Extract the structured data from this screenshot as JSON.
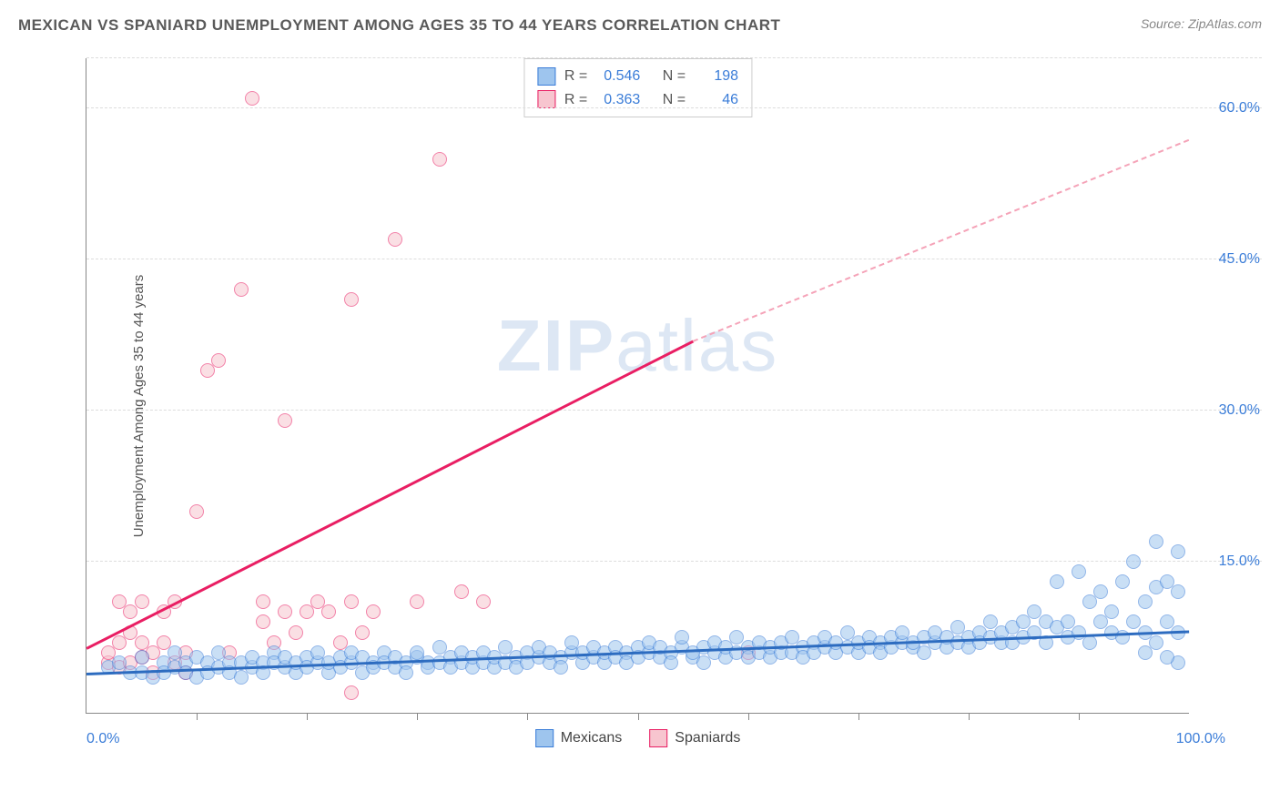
{
  "title": "MEXICAN VS SPANIARD UNEMPLOYMENT AMONG AGES 35 TO 44 YEARS CORRELATION CHART",
  "source_prefix": "Source: ",
  "source_name": "ZipAtlas.com",
  "ylabel": "Unemployment Among Ages 35 to 44 years",
  "watermark_bold": "ZIP",
  "watermark_rest": "atlas",
  "chart": {
    "type": "scatter",
    "background_color": "#ffffff",
    "grid_color": "#dddddd",
    "axis_color": "#888888",
    "label_color": "#3b7dd8",
    "xlim": [
      0,
      100
    ],
    "ylim": [
      0,
      65
    ],
    "x_ticks_label_left": "0.0%",
    "x_ticks_label_right": "100.0%",
    "x_minor_ticks": [
      10,
      20,
      30,
      40,
      50,
      60,
      70,
      80,
      90
    ],
    "y_gridlines": [
      {
        "value": 15.0,
        "label": "15.0%"
      },
      {
        "value": 30.0,
        "label": "30.0%"
      },
      {
        "value": 45.0,
        "label": "45.0%"
      },
      {
        "value": 60.0,
        "label": "60.0%"
      }
    ],
    "point_radius": 8,
    "point_opacity": 0.55,
    "point_border_width": 1.2,
    "series": [
      {
        "name": "Mexicans",
        "fill_color": "#9ec5ee",
        "border_color": "#3b7dd8",
        "R": "0.546",
        "N": "198",
        "trend": {
          "x1": 0,
          "y1": 4.0,
          "x2": 100,
          "y2": 8.2,
          "color": "#2d6cc0",
          "width": 2.5
        },
        "points": [
          [
            2,
            4.5
          ],
          [
            3,
            5
          ],
          [
            4,
            4
          ],
          [
            5,
            5.5
          ],
          [
            5,
            4
          ],
          [
            6,
            3.5
          ],
          [
            7,
            5
          ],
          [
            7,
            4
          ],
          [
            8,
            4.5
          ],
          [
            8,
            6
          ],
          [
            9,
            5
          ],
          [
            9,
            4
          ],
          [
            10,
            3.5
          ],
          [
            10,
            5.5
          ],
          [
            11,
            5
          ],
          [
            11,
            4
          ],
          [
            12,
            4.5
          ],
          [
            12,
            6
          ],
          [
            13,
            5
          ],
          [
            13,
            4
          ],
          [
            14,
            5
          ],
          [
            14,
            3.5
          ],
          [
            15,
            4.5
          ],
          [
            15,
            5.5
          ],
          [
            16,
            5
          ],
          [
            16,
            4
          ],
          [
            17,
            6
          ],
          [
            17,
            5
          ],
          [
            18,
            4.5
          ],
          [
            18,
            5.5
          ],
          [
            19,
            4
          ],
          [
            19,
            5
          ],
          [
            20,
            5.5
          ],
          [
            20,
            4.5
          ],
          [
            21,
            5
          ],
          [
            21,
            6
          ],
          [
            22,
            4
          ],
          [
            22,
            5
          ],
          [
            23,
            5.5
          ],
          [
            23,
            4.5
          ],
          [
            24,
            5
          ],
          [
            24,
            6
          ],
          [
            25,
            4
          ],
          [
            25,
            5.5
          ],
          [
            26,
            5
          ],
          [
            26,
            4.5
          ],
          [
            27,
            6
          ],
          [
            27,
            5
          ],
          [
            28,
            4.5
          ],
          [
            28,
            5.5
          ],
          [
            29,
            5
          ],
          [
            29,
            4
          ],
          [
            30,
            5.5
          ],
          [
            30,
            6
          ],
          [
            31,
            5
          ],
          [
            31,
            4.5
          ],
          [
            32,
            6.5
          ],
          [
            32,
            5
          ],
          [
            33,
            5.5
          ],
          [
            33,
            4.5
          ],
          [
            34,
            5
          ],
          [
            34,
            6
          ],
          [
            35,
            4.5
          ],
          [
            35,
            5.5
          ],
          [
            36,
            5
          ],
          [
            36,
            6
          ],
          [
            37,
            4.5
          ],
          [
            37,
            5.5
          ],
          [
            38,
            5
          ],
          [
            38,
            6.5
          ],
          [
            39,
            5.5
          ],
          [
            39,
            4.5
          ],
          [
            40,
            6
          ],
          [
            40,
            5
          ],
          [
            41,
            5.5
          ],
          [
            41,
            6.5
          ],
          [
            42,
            5
          ],
          [
            42,
            6
          ],
          [
            43,
            5.5
          ],
          [
            43,
            4.5
          ],
          [
            44,
            6
          ],
          [
            44,
            7
          ],
          [
            45,
            5
          ],
          [
            45,
            6
          ],
          [
            46,
            5.5
          ],
          [
            46,
            6.5
          ],
          [
            47,
            5
          ],
          [
            47,
            6
          ],
          [
            48,
            6.5
          ],
          [
            48,
            5.5
          ],
          [
            49,
            6
          ],
          [
            49,
            5
          ],
          [
            50,
            6.5
          ],
          [
            50,
            5.5
          ],
          [
            51,
            6
          ],
          [
            51,
            7
          ],
          [
            52,
            5.5
          ],
          [
            52,
            6.5
          ],
          [
            53,
            6
          ],
          [
            53,
            5
          ],
          [
            54,
            6.5
          ],
          [
            54,
            7.5
          ],
          [
            55,
            5.5
          ],
          [
            55,
            6
          ],
          [
            56,
            6.5
          ],
          [
            56,
            5
          ],
          [
            57,
            6
          ],
          [
            57,
            7
          ],
          [
            58,
            5.5
          ],
          [
            58,
            6.5
          ],
          [
            59,
            6
          ],
          [
            59,
            7.5
          ],
          [
            60,
            6.5
          ],
          [
            60,
            5.5
          ],
          [
            61,
            6
          ],
          [
            61,
            7
          ],
          [
            62,
            5.5
          ],
          [
            62,
            6.5
          ],
          [
            63,
            6
          ],
          [
            63,
            7
          ],
          [
            64,
            7.5
          ],
          [
            64,
            6
          ],
          [
            65,
            6.5
          ],
          [
            65,
            5.5
          ],
          [
            66,
            7
          ],
          [
            66,
            6
          ],
          [
            67,
            6.5
          ],
          [
            67,
            7.5
          ],
          [
            68,
            6
          ],
          [
            68,
            7
          ],
          [
            69,
            6.5
          ],
          [
            69,
            8
          ],
          [
            70,
            6
          ],
          [
            70,
            7
          ],
          [
            71,
            7.5
          ],
          [
            71,
            6.5
          ],
          [
            72,
            7
          ],
          [
            72,
            6
          ],
          [
            73,
            6.5
          ],
          [
            73,
            7.5
          ],
          [
            74,
            7
          ],
          [
            74,
            8
          ],
          [
            75,
            6.5
          ],
          [
            75,
            7
          ],
          [
            76,
            7.5
          ],
          [
            76,
            6
          ],
          [
            77,
            7
          ],
          [
            77,
            8
          ],
          [
            78,
            6.5
          ],
          [
            78,
            7.5
          ],
          [
            79,
            7
          ],
          [
            79,
            8.5
          ],
          [
            80,
            7.5
          ],
          [
            80,
            6.5
          ],
          [
            81,
            8
          ],
          [
            81,
            7
          ],
          [
            82,
            7.5
          ],
          [
            82,
            9
          ],
          [
            83,
            7
          ],
          [
            83,
            8
          ],
          [
            84,
            8.5
          ],
          [
            84,
            7
          ],
          [
            85,
            9
          ],
          [
            85,
            7.5
          ],
          [
            86,
            8
          ],
          [
            86,
            10
          ],
          [
            87,
            7
          ],
          [
            87,
            9
          ],
          [
            88,
            8.5
          ],
          [
            88,
            13
          ],
          [
            89,
            7.5
          ],
          [
            89,
            9
          ],
          [
            90,
            8
          ],
          [
            90,
            14
          ],
          [
            91,
            11
          ],
          [
            91,
            7
          ],
          [
            92,
            9
          ],
          [
            92,
            12
          ],
          [
            93,
            8
          ],
          [
            93,
            10
          ],
          [
            94,
            13
          ],
          [
            94,
            7.5
          ],
          [
            95,
            9
          ],
          [
            95,
            15
          ],
          [
            96,
            8
          ],
          [
            96,
            11
          ],
          [
            97,
            17
          ],
          [
            97,
            12.5
          ],
          [
            98,
            9
          ],
          [
            98,
            13
          ],
          [
            99,
            16
          ],
          [
            99,
            8
          ],
          [
            99,
            12
          ],
          [
            99,
            5
          ],
          [
            98,
            5.5
          ],
          [
            97,
            7
          ],
          [
            96,
            6
          ]
        ]
      },
      {
        "name": "Spaniards",
        "fill_color": "#f7c5cf",
        "border_color": "#e91e63",
        "R": "0.363",
        "N": "46",
        "trend_solid": {
          "x1": 0,
          "y1": 6.5,
          "x2": 55,
          "y2": 37,
          "color": "#e91e63",
          "width": 2.5
        },
        "trend_dashed": {
          "x1": 55,
          "y1": 37,
          "x2": 100,
          "y2": 57,
          "color": "#f5a3b8",
          "width": 2
        },
        "points": [
          [
            2,
            5
          ],
          [
            2,
            6
          ],
          [
            3,
            4.5
          ],
          [
            3,
            7
          ],
          [
            3,
            11
          ],
          [
            4,
            5
          ],
          [
            4,
            8
          ],
          [
            4,
            10
          ],
          [
            5,
            7
          ],
          [
            5,
            5.5
          ],
          [
            5,
            11
          ],
          [
            6,
            4
          ],
          [
            6,
            6
          ],
          [
            7,
            10
          ],
          [
            7,
            7
          ],
          [
            8,
            5
          ],
          [
            8,
            11
          ],
          [
            9,
            6
          ],
          [
            9,
            4
          ],
          [
            10,
            20
          ],
          [
            11,
            34
          ],
          [
            12,
            35
          ],
          [
            13,
            6
          ],
          [
            14,
            42
          ],
          [
            15,
            61
          ],
          [
            16,
            9
          ],
          [
            16,
            11
          ],
          [
            17,
            7
          ],
          [
            18,
            10
          ],
          [
            18,
            29
          ],
          [
            19,
            8
          ],
          [
            20,
            10
          ],
          [
            21,
            11
          ],
          [
            22,
            10
          ],
          [
            23,
            7
          ],
          [
            24,
            11
          ],
          [
            24,
            41
          ],
          [
            25,
            8
          ],
          [
            26,
            10
          ],
          [
            28,
            47
          ],
          [
            30,
            11
          ],
          [
            32,
            55
          ],
          [
            34,
            12
          ],
          [
            36,
            11
          ],
          [
            24,
            2
          ],
          [
            60,
            6
          ]
        ]
      }
    ],
    "stats_labels": {
      "R": "R =",
      "N": "N ="
    },
    "legend_items": [
      {
        "label": "Mexicans",
        "fill": "#9ec5ee",
        "border": "#3b7dd8"
      },
      {
        "label": "Spaniards",
        "fill": "#f7c5cf",
        "border": "#e91e63"
      }
    ]
  }
}
